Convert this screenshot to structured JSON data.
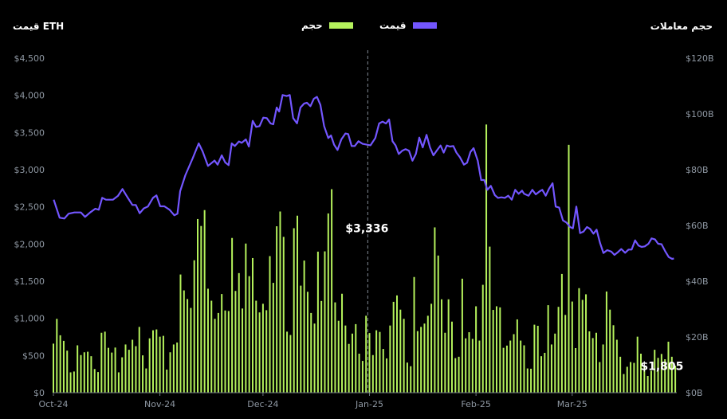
{
  "header": {
    "left_axis_title": "قیمت ETH",
    "right_axis_title": "حجم معاملات",
    "legend": [
      {
        "label": "حجم",
        "color": "#b5f25c"
      },
      {
        "label": "قیمت",
        "color": "#7356ff"
      }
    ]
  },
  "chart_data": {
    "type": "line+bar",
    "x_unit": "day index from 2024-10-01",
    "x_ticks": [
      {
        "label": "Oct-24",
        "day": 0
      },
      {
        "label": "Nov-24",
        "day": 31
      },
      {
        "label": "Dec-24",
        "day": 61
      },
      {
        "label": "Jan-25",
        "day": 92
      },
      {
        "label": "Feb-25",
        "day": 123
      },
      {
        "label": "Mar-25",
        "day": 151
      }
    ],
    "left_axis": {
      "label": "قیمت ETH",
      "range": [
        0,
        4500
      ],
      "ticks": [
        "$0",
        "$500",
        "$1,000",
        "$1,500",
        "$2,000",
        "$2,500",
        "$3,000",
        "$3,500",
        "$4,000",
        "$4,500"
      ]
    },
    "right_axis": {
      "label": "حجم معاملات",
      "range": [
        0,
        120
      ],
      "unit": "B USD",
      "ticks": [
        "$0B",
        "$20B",
        "$40B",
        "$60B",
        "$80B",
        "$100B",
        "$120B"
      ]
    },
    "grid": false,
    "legend_position": "top-center",
    "series": [
      {
        "name": "قیمت",
        "type": "line",
        "axis": "left",
        "color": "#7356ff",
        "points": [
          [
            0.1,
            2596
          ],
          [
            1.8,
            2354
          ],
          [
            3.2,
            2343
          ],
          [
            4.4,
            2407
          ],
          [
            6.1,
            2425
          ],
          [
            8,
            2425
          ],
          [
            9.2,
            2365
          ],
          [
            10.7,
            2425
          ],
          [
            12.2,
            2475
          ],
          [
            13.2,
            2461
          ],
          [
            14.2,
            2622
          ],
          [
            15.3,
            2596
          ],
          [
            17.3,
            2596
          ],
          [
            18.8,
            2647
          ],
          [
            20.1,
            2740
          ],
          [
            21.5,
            2633
          ],
          [
            23,
            2525
          ],
          [
            24,
            2525
          ],
          [
            25.1,
            2414
          ],
          [
            26.3,
            2479
          ],
          [
            27.5,
            2504
          ],
          [
            29,
            2622
          ],
          [
            30,
            2654
          ],
          [
            31.1,
            2507
          ],
          [
            32.3,
            2507
          ],
          [
            33.8,
            2461
          ],
          [
            35.2,
            2386
          ],
          [
            36.1,
            2407
          ],
          [
            36.9,
            2711
          ],
          [
            38.4,
            2925
          ],
          [
            40.5,
            3150
          ],
          [
            42.3,
            3354
          ],
          [
            43.4,
            3247
          ],
          [
            45,
            3050
          ],
          [
            46.9,
            3122
          ],
          [
            47.8,
            3068
          ],
          [
            49,
            3193
          ],
          [
            50,
            3097
          ],
          [
            51,
            3061
          ],
          [
            51.9,
            3354
          ],
          [
            52.8,
            3318
          ],
          [
            54,
            3379
          ],
          [
            54.8,
            3361
          ],
          [
            56,
            3407
          ],
          [
            56.9,
            3311
          ],
          [
            58,
            3657
          ],
          [
            59,
            3575
          ],
          [
            60,
            3586
          ],
          [
            61.1,
            3700
          ],
          [
            62.1,
            3693
          ],
          [
            63.2,
            3622
          ],
          [
            64,
            3611
          ],
          [
            65,
            3836
          ],
          [
            65.7,
            3782
          ],
          [
            66.7,
            4004
          ],
          [
            67.9,
            3990
          ],
          [
            68.8,
            4004
          ],
          [
            69.8,
            3693
          ],
          [
            70.9,
            3622
          ],
          [
            71.9,
            3836
          ],
          [
            73,
            3890
          ],
          [
            73.8,
            3900
          ],
          [
            74.8,
            3854
          ],
          [
            75.8,
            3954
          ],
          [
            76.7,
            3979
          ],
          [
            77.7,
            3872
          ],
          [
            78.8,
            3586
          ],
          [
            80,
            3425
          ],
          [
            80.8,
            3461
          ],
          [
            81.7,
            3336
          ],
          [
            82.7,
            3265
          ],
          [
            83.8,
            3407
          ],
          [
            85,
            3486
          ],
          [
            85.8,
            3479
          ],
          [
            86.8,
            3318
          ],
          [
            87.7,
            3318
          ],
          [
            88.8,
            3382
          ],
          [
            90,
            3347
          ],
          [
            91.2,
            3336
          ],
          [
            92.3,
            3328
          ],
          [
            93.7,
            3425
          ],
          [
            94.8,
            3621
          ],
          [
            95.8,
            3646
          ],
          [
            96.8,
            3621
          ],
          [
            97.7,
            3675
          ],
          [
            98.7,
            3382
          ],
          [
            99.6,
            3325
          ],
          [
            100.5,
            3211
          ],
          [
            101.5,
            3254
          ],
          [
            102.5,
            3275
          ],
          [
            103.5,
            3254
          ],
          [
            104.5,
            3121
          ],
          [
            105.5,
            3211
          ],
          [
            106.5,
            3432
          ],
          [
            107.5,
            3300
          ],
          [
            108.6,
            3468
          ],
          [
            109.6,
            3300
          ],
          [
            110.6,
            3193
          ],
          [
            111.7,
            3264
          ],
          [
            112.7,
            3325
          ],
          [
            113.6,
            3229
          ],
          [
            114.5,
            3325
          ],
          [
            115.4,
            3311
          ],
          [
            116.4,
            3318
          ],
          [
            117.3,
            3229
          ],
          [
            118.3,
            3168
          ],
          [
            119.5,
            3068
          ],
          [
            120.4,
            3093
          ],
          [
            121.4,
            3239
          ],
          [
            122.3,
            3289
          ],
          [
            123.5,
            3121
          ],
          [
            124.5,
            2861
          ],
          [
            125.4,
            2861
          ],
          [
            126.3,
            2729
          ],
          [
            127.3,
            2782
          ],
          [
            128.5,
            2657
          ],
          [
            129.4,
            2621
          ],
          [
            130.4,
            2628
          ],
          [
            131.4,
            2621
          ],
          [
            132.4,
            2650
          ],
          [
            133.4,
            2596
          ],
          [
            134.4,
            2729
          ],
          [
            135.4,
            2675
          ],
          [
            136.4,
            2718
          ],
          [
            137,
            2675
          ],
          [
            138.3,
            2650
          ],
          [
            139.4,
            2729
          ],
          [
            140.4,
            2668
          ],
          [
            141.6,
            2711
          ],
          [
            142.3,
            2729
          ],
          [
            143.3,
            2650
          ],
          [
            144.3,
            2746
          ],
          [
            145.3,
            2818
          ],
          [
            146.2,
            2504
          ],
          [
            147.2,
            2490
          ],
          [
            148.3,
            2318
          ],
          [
            149.3,
            2290
          ],
          [
            150.4,
            2229
          ],
          [
            151.2,
            2211
          ],
          [
            152.2,
            2504
          ],
          [
            153.3,
            2147
          ],
          [
            154.3,
            2168
          ],
          [
            155.3,
            2229
          ],
          [
            156.2,
            2204
          ],
          [
            157.2,
            2140
          ],
          [
            158.1,
            2193
          ],
          [
            159.1,
            2015
          ],
          [
            160.1,
            1879
          ],
          [
            161.2,
            1918
          ],
          [
            162.4,
            1897
          ],
          [
            163.3,
            1854
          ],
          [
            164.3,
            1890
          ],
          [
            165.3,
            1933
          ],
          [
            166.4,
            1883
          ],
          [
            167.4,
            1925
          ],
          [
            168.3,
            1925
          ],
          [
            169.3,
            2050
          ],
          [
            170.3,
            1979
          ],
          [
            171.2,
            1961
          ],
          [
            172.1,
            1968
          ],
          [
            173.2,
            2004
          ],
          [
            174.1,
            2075
          ],
          [
            175.1,
            2061
          ],
          [
            176,
            2004
          ],
          [
            177,
            1997
          ],
          [
            178,
            1908
          ],
          [
            179.1,
            1825
          ],
          [
            180.1,
            1800
          ],
          [
            180.6,
            1805
          ]
        ]
      },
      {
        "name": "حجم",
        "type": "bar",
        "axis": "right",
        "color": "#b5f25c",
        "values": [
          17.6,
          26.5,
          20.6,
          18.6,
          15.1,
          7.3,
          7.6,
          17,
          13.5,
          14.5,
          14.7,
          13.1,
          8.5,
          7.4,
          21.5,
          21.9,
          16.1,
          14.4,
          16.2,
          7.3,
          12.7,
          17.3,
          15.4,
          19,
          16.7,
          23.6,
          13.4,
          8.7,
          19.5,
          22.4,
          22.7,
          20.1,
          20.4,
          8.3,
          14.5,
          17.3,
          18,
          42.4,
          36.7,
          33.6,
          30.4,
          47.5,
          62.3,
          59.8,
          65.5,
          37.3,
          33,
          26.5,
          28.6,
          35.4,
          29.5,
          29.3,
          55.5,
          36.5,
          42.9,
          30.2,
          53.5,
          41.8,
          48.3,
          33,
          28.8,
          31.9,
          29.6,
          49,
          39.4,
          59.7,
          65,
          55.9,
          21.9,
          20.7,
          59,
          63.5,
          38.4,
          47.4,
          36.2,
          28.6,
          24.8,
          50.6,
          32.9,
          50.7,
          64.3,
          73,
          32.4,
          25.8,
          35.5,
          24.1,
          17.5,
          21.2,
          24.6,
          14,
          11.4,
          27.6,
          21.4,
          13.5,
          22.4,
          21.8,
          15.7,
          12.3,
          24.1,
          32.6,
          34.9,
          29.8,
          26.5,
          10.8,
          9.5,
          41.5,
          22.1,
          23.6,
          24.8,
          27.6,
          31.9,
          59.3,
          49.2,
          33.5,
          21.5,
          33.5,
          25.5,
          12.4,
          12.9,
          40.9,
          19.5,
          21.7,
          19.3,
          31,
          18.7,
          38.7,
          96.2,
          52.4,
          29.7,
          31,
          30.6,
          16.1,
          16.9,
          18.7,
          21,
          26.3,
          18.7,
          17,
          8.7,
          8.6,
          24.4,
          24,
          13.1,
          14.3,
          31.4,
          17.3,
          21.2,
          30.8,
          42.6,
          27.9,
          88.9,
          32.7,
          16,
          37.5,
          33.3,
          35.3,
          22,
          19.6,
          21.5,
          11,
          17.3,
          36.3,
          29.8,
          24.2,
          19,
          12.9,
          6.7,
          9.3,
          11,
          10.7,
          20.1,
          14,
          9.6,
          6,
          7.9,
          15.4,
          12.5,
          13.9,
          12,
          18.3,
          12.9,
          9.7
        ]
      }
    ],
    "annotations": [
      {
        "text": "$3,336",
        "day": 91.5,
        "value": 3336,
        "crosshair": true
      },
      {
        "text": "$1,805",
        "day": 180.6,
        "value": 1805
      }
    ]
  }
}
